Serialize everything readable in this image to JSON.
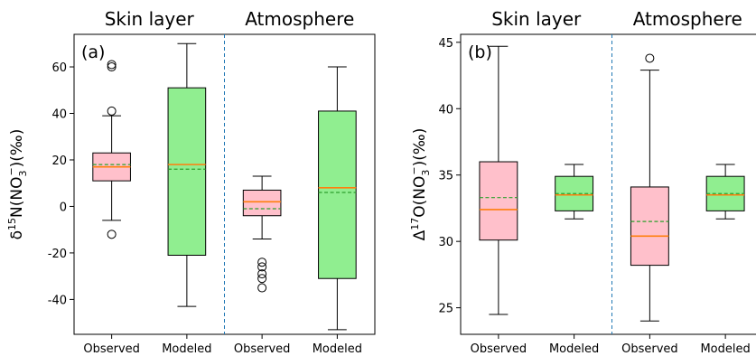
{
  "chart_data": [
    {
      "type": "box",
      "panel_label": "(a)",
      "group_titles": [
        "Skin layer",
        "Atmosphere"
      ],
      "ylabel": "δ15N(NO3−)(‰)",
      "ylabel_parts": {
        "prefix": "δ",
        "sup": "15",
        "species": "N(NO",
        "sub": "3",
        "charge": "−",
        "suffix": ")(‰)"
      },
      "ylim": [
        -55,
        74
      ],
      "yticks": [
        -40,
        -20,
        0,
        20,
        40,
        60
      ],
      "divider_after": 2,
      "categories": [
        "Observed",
        "Modeled",
        "Observed",
        "Modeled"
      ],
      "boxes": [
        {
          "group": "Skin layer",
          "label": "Observed",
          "kind": "observed",
          "whislo": -6,
          "q1": 11,
          "med": 17,
          "mean": 18,
          "q3": 23,
          "whishi": 39,
          "fliers": [
            -12,
            41,
            60,
            61
          ]
        },
        {
          "group": "Skin layer",
          "label": "Modeled",
          "kind": "modeled",
          "whislo": -43,
          "q1": -21,
          "med": 18,
          "mean": 16,
          "q3": 51,
          "whishi": 70,
          "fliers": []
        },
        {
          "group": "Atmosphere",
          "label": "Observed",
          "kind": "observed",
          "whislo": -14,
          "q1": -4,
          "med": 2,
          "mean": -1,
          "q3": 7,
          "whishi": 13,
          "fliers": [
            -35,
            -31,
            -29,
            -26,
            -24
          ]
        },
        {
          "group": "Atmosphere",
          "label": "Modeled",
          "kind": "modeled",
          "whislo": -53,
          "q1": -31,
          "med": 8,
          "mean": 6,
          "q3": 41,
          "whishi": 60,
          "fliers": []
        }
      ]
    },
    {
      "type": "box",
      "panel_label": "(b)",
      "group_titles": [
        "Skin layer",
        "Atmosphere"
      ],
      "ylabel": "Δ17O(NO3−)(‰)",
      "ylabel_parts": {
        "prefix": "Δ",
        "sup": "17",
        "species": "O(NO",
        "sub": "3",
        "charge": "−",
        "suffix": ")(‰)"
      },
      "ylim": [
        23,
        45.6
      ],
      "yticks": [
        25,
        30,
        35,
        40,
        45
      ],
      "divider_after": 2,
      "categories": [
        "Observed",
        "Modeled",
        "Observed",
        "Modeled"
      ],
      "boxes": [
        {
          "group": "Skin layer",
          "label": "Observed",
          "kind": "observed",
          "whislo": 24.5,
          "q1": 30.1,
          "med": 32.4,
          "mean": 33.3,
          "q3": 36.0,
          "whishi": 44.7,
          "fliers": []
        },
        {
          "group": "Skin layer",
          "label": "Modeled",
          "kind": "modeled",
          "whislo": 31.7,
          "q1": 32.3,
          "med": 33.5,
          "mean": 33.6,
          "q3": 34.9,
          "whishi": 35.8,
          "fliers": []
        },
        {
          "group": "Atmosphere",
          "label": "Observed",
          "kind": "observed",
          "whislo": 24.0,
          "q1": 28.2,
          "med": 30.4,
          "mean": 31.5,
          "q3": 34.1,
          "whishi": 42.9,
          "fliers": [
            43.8
          ]
        },
        {
          "group": "Atmosphere",
          "label": "Modeled",
          "kind": "modeled",
          "whislo": 31.7,
          "q1": 32.3,
          "med": 33.5,
          "mean": 33.6,
          "q3": 34.9,
          "whishi": 35.8,
          "fliers": []
        }
      ]
    }
  ]
}
